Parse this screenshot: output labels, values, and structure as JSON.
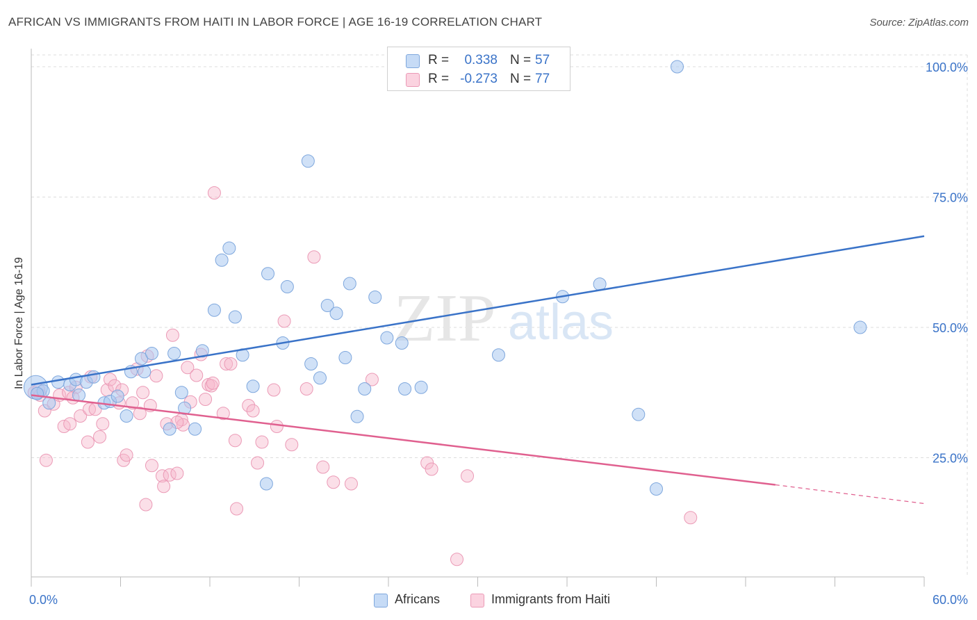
{
  "title": "AFRICAN VS IMMIGRANTS FROM HAITI IN LABOR FORCE | AGE 16-19 CORRELATION CHART",
  "source": "Source: ZipAtlas.com",
  "watermark": {
    "zip": "ZIP",
    "atlas": "atlas"
  },
  "legend": {
    "rows": [
      {
        "r_label": "R =",
        "r_value": "0.338",
        "n_label": "N =",
        "n_value": "57",
        "color": "#a9c8f0"
      },
      {
        "r_label": "R =",
        "r_value": "-0.273",
        "n_label": "N =",
        "n_value": "77",
        "color": "#f7b8cc"
      }
    ]
  },
  "bottom_legend": [
    {
      "label": "Africans",
      "color": "#a9c8f0"
    },
    {
      "label": "Immigrants from Haiti",
      "color": "#f7b8cc"
    }
  ],
  "chart_data": {
    "type": "scatter",
    "ylabel": "In Labor Force | Age 16-19",
    "xlim": [
      0,
      60
    ],
    "ylim": [
      0,
      105
    ],
    "x_tick_labels": [
      "0.0%",
      "60.0%"
    ],
    "y_ticks": [
      25,
      50,
      75,
      100
    ],
    "y_tick_labels": [
      "25.0%",
      "50.0%",
      "75.0%",
      "100.0%"
    ],
    "grid": true,
    "colors": {
      "africans": "#3a73c8",
      "haiti": "#e0608f"
    },
    "series": [
      {
        "name": "Africans",
        "points": [
          [
            0.3,
            38.5
          ],
          [
            0.8,
            37.8
          ],
          [
            1.2,
            35.5
          ],
          [
            1.8,
            39.5
          ],
          [
            2.6,
            39.0
          ],
          [
            3.0,
            40.0
          ],
          [
            3.2,
            37.0
          ],
          [
            3.7,
            39.5
          ],
          [
            4.2,
            40.5
          ],
          [
            4.9,
            35.5
          ],
          [
            5.3,
            35.8
          ],
          [
            5.8,
            36.8
          ],
          [
            6.4,
            33.0
          ],
          [
            6.7,
            41.5
          ],
          [
            7.4,
            44.0
          ],
          [
            7.6,
            41.5
          ],
          [
            8.1,
            45.0
          ],
          [
            9.3,
            30.5
          ],
          [
            9.6,
            45.0
          ],
          [
            10.1,
            37.5
          ],
          [
            10.3,
            34.5
          ],
          [
            11.0,
            30.5
          ],
          [
            11.5,
            45.5
          ],
          [
            12.3,
            53.3
          ],
          [
            12.8,
            62.9
          ],
          [
            13.3,
            65.2
          ],
          [
            13.7,
            52.0
          ],
          [
            14.2,
            44.7
          ],
          [
            14.9,
            38.7
          ],
          [
            15.8,
            20.0
          ],
          [
            15.9,
            60.3
          ],
          [
            16.9,
            47.0
          ],
          [
            17.2,
            57.8
          ],
          [
            18.6,
            81.9
          ],
          [
            18.8,
            43.0
          ],
          [
            19.4,
            40.3
          ],
          [
            19.9,
            54.2
          ],
          [
            20.5,
            52.7
          ],
          [
            21.1,
            44.2
          ],
          [
            21.4,
            58.4
          ],
          [
            21.9,
            32.9
          ],
          [
            22.4,
            38.2
          ],
          [
            23.1,
            55.8
          ],
          [
            23.9,
            48.0
          ],
          [
            24.9,
            47.0
          ],
          [
            25.1,
            38.2
          ],
          [
            26.2,
            38.5
          ],
          [
            27.0,
            100.0
          ],
          [
            28.5,
            100.0
          ],
          [
            31.4,
            44.7
          ],
          [
            35.7,
            55.9
          ],
          [
            38.2,
            58.3
          ],
          [
            40.8,
            33.3
          ],
          [
            42.0,
            19.0
          ],
          [
            43.4,
            100.0
          ],
          [
            55.7,
            50.0
          ],
          [
            0.4,
            37.3
          ]
        ]
      },
      {
        "name": "Immigrants from Haiti",
        "points": [
          [
            0.2,
            37.5
          ],
          [
            0.5,
            38.0
          ],
          [
            0.9,
            34.0
          ],
          [
            1.0,
            24.5
          ],
          [
            1.5,
            35.3
          ],
          [
            1.9,
            37.0
          ],
          [
            2.2,
            31.0
          ],
          [
            2.5,
            37.5
          ],
          [
            2.6,
            31.5
          ],
          [
            3.0,
            38.5
          ],
          [
            3.3,
            33.0
          ],
          [
            3.8,
            28.0
          ],
          [
            3.9,
            34.3
          ],
          [
            4.3,
            34.3
          ],
          [
            4.6,
            29.0
          ],
          [
            4.8,
            31.5
          ],
          [
            5.1,
            38.0
          ],
          [
            5.3,
            40.0
          ],
          [
            5.6,
            38.8
          ],
          [
            5.9,
            35.5
          ],
          [
            6.1,
            38.0
          ],
          [
            6.2,
            24.5
          ],
          [
            6.4,
            25.5
          ],
          [
            6.8,
            35.5
          ],
          [
            7.1,
            42.0
          ],
          [
            7.3,
            33.5
          ],
          [
            7.5,
            37.5
          ],
          [
            7.7,
            16.0
          ],
          [
            7.8,
            44.5
          ],
          [
            8.0,
            35.0
          ],
          [
            8.1,
            23.5
          ],
          [
            8.4,
            40.7
          ],
          [
            8.8,
            21.5
          ],
          [
            8.9,
            19.5
          ],
          [
            9.1,
            31.5
          ],
          [
            9.3,
            21.7
          ],
          [
            9.5,
            48.5
          ],
          [
            9.8,
            22.0
          ],
          [
            10.1,
            32.3
          ],
          [
            10.2,
            31.3
          ],
          [
            10.5,
            42.3
          ],
          [
            10.7,
            35.7
          ],
          [
            11.1,
            40.8
          ],
          [
            11.4,
            44.8
          ],
          [
            11.7,
            36.2
          ],
          [
            11.9,
            39.0
          ],
          [
            12.1,
            38.8
          ],
          [
            12.3,
            75.8
          ],
          [
            12.9,
            33.5
          ],
          [
            13.1,
            43.0
          ],
          [
            13.4,
            43.0
          ],
          [
            13.7,
            28.3
          ],
          [
            13.8,
            15.2
          ],
          [
            14.6,
            35.0
          ],
          [
            14.9,
            34.0
          ],
          [
            15.5,
            28.0
          ],
          [
            16.3,
            38.0
          ],
          [
            16.5,
            31.0
          ],
          [
            17.0,
            51.2
          ],
          [
            17.5,
            27.5
          ],
          [
            18.5,
            38.2
          ],
          [
            19.0,
            63.5
          ],
          [
            19.6,
            23.2
          ],
          [
            20.3,
            20.3
          ],
          [
            21.5,
            20.0
          ],
          [
            22.9,
            40.0
          ],
          [
            26.6,
            24.0
          ],
          [
            26.9,
            22.8
          ],
          [
            28.6,
            5.5
          ],
          [
            29.3,
            21.5
          ],
          [
            44.3,
            13.5
          ],
          [
            0.6,
            37.0
          ],
          [
            2.8,
            36.5
          ],
          [
            4.0,
            40.5
          ],
          [
            9.8,
            31.8
          ],
          [
            12.2,
            39.3
          ],
          [
            15.2,
            24.0
          ]
        ]
      }
    ],
    "trend_lines": [
      {
        "series": "Africans",
        "from": [
          0,
          39.0
        ],
        "to": [
          60,
          67.5
        ]
      },
      {
        "series": "Immigrants from Haiti",
        "from": [
          0,
          37.0
        ],
        "to": [
          50,
          19.8
        ],
        "dashed_to": [
          60,
          16.2
        ]
      }
    ]
  }
}
